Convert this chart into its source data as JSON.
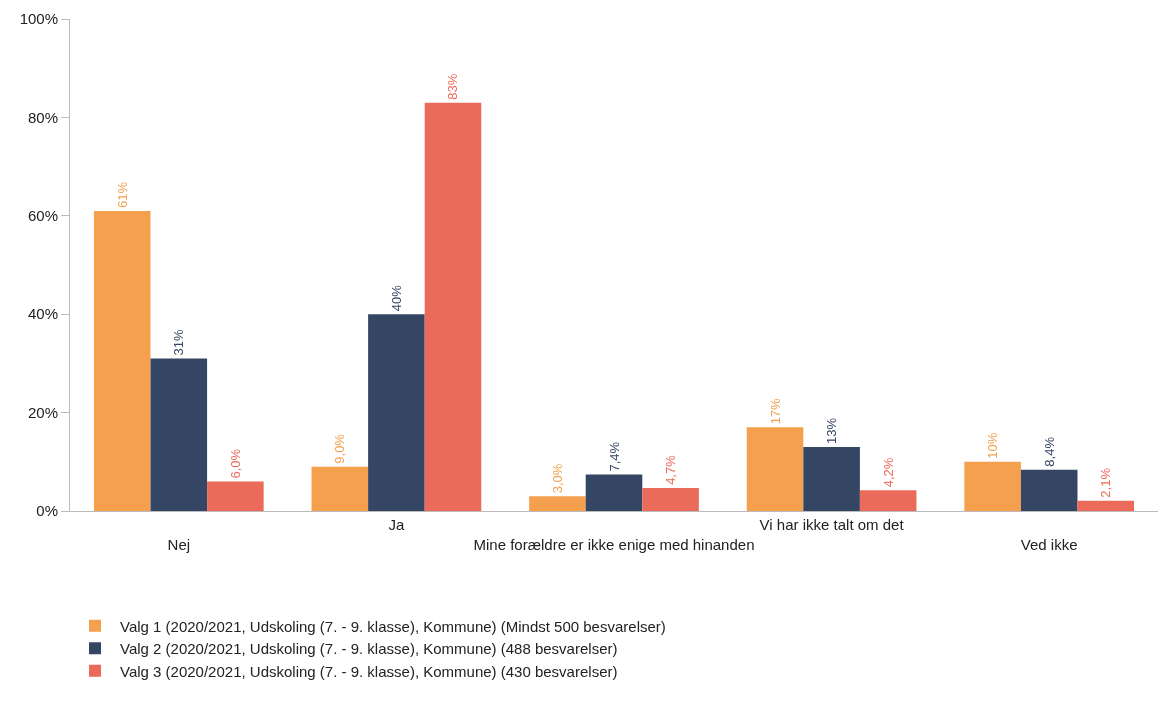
{
  "chart_data": {
    "type": "bar",
    "categories": [
      "Nej",
      "Ja",
      "Mine forældre er ikke enige med hinanden",
      "Vi har ikke talt om det",
      "Ved ikke"
    ],
    "series": [
      {
        "name": "Valg 1 (2020/2021, Udskoling (7. - 9. klasse), Kommune) (Mindst 500 besvarelser)",
        "color": "#f4a04f",
        "values": [
          61,
          9.0,
          3.0,
          17,
          10
        ],
        "value_labels": [
          "61%",
          "9,0%",
          "3,0%",
          "17%",
          "10%"
        ]
      },
      {
        "name": "Valg 2 (2020/2021, Udskoling (7. - 9. klasse), Kommune) (488 besvarelser)",
        "color": "#354664",
        "values": [
          31,
          40,
          7.4,
          13,
          8.4
        ],
        "value_labels": [
          "31%",
          "40%",
          "7,4%",
          "13%",
          "8,4%"
        ]
      },
      {
        "name": "Valg 3 (2020/2021, Udskoling (7. - 9. klasse), Kommune) (430 besvarelser)",
        "color": "#eb6b5a",
        "values": [
          6.0,
          83,
          4.7,
          4.2,
          2.1
        ],
        "value_labels": [
          "6,0%",
          "83%",
          "4,7%",
          "4,2%",
          "2,1%"
        ]
      }
    ],
    "ylim": [
      0,
      100
    ],
    "yticks": [
      {
        "value": 0,
        "label": "0%"
      },
      {
        "value": 20,
        "label": "20%"
      },
      {
        "value": 40,
        "label": "40%"
      },
      {
        "value": 60,
        "label": "60%"
      },
      {
        "value": 80,
        "label": "80%"
      },
      {
        "value": 100,
        "label": "100%"
      }
    ],
    "legend": "bottom"
  }
}
